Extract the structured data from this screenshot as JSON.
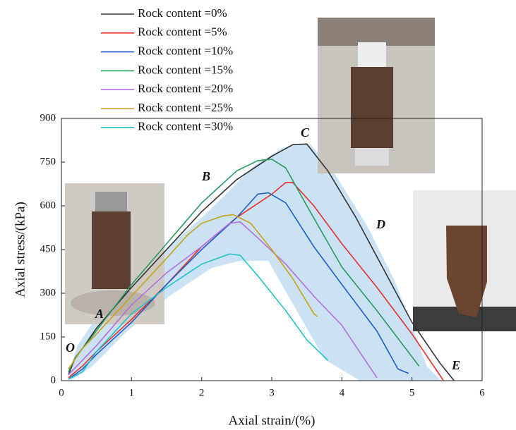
{
  "chart_data": {
    "type": "line",
    "x_label": "Axial strain/(%)",
    "y_label": "Axial stress/(kPa)",
    "xlim": [
      0,
      6
    ],
    "xticks": [
      0,
      1,
      2,
      3,
      4,
      5,
      6
    ],
    "ylim": [
      0,
      900
    ],
    "yticks": [
      0,
      150,
      300,
      450,
      600,
      750,
      900
    ],
    "annotations": [
      "O",
      "A",
      "B",
      "C",
      "D",
      "E"
    ],
    "series": [
      {
        "name": "Rock content =0%",
        "color": "#333333",
        "x": [
          0.1,
          0.2,
          0.3,
          0.5,
          1,
          1.5,
          2,
          2.5,
          3,
          3.3,
          3.5,
          3.8,
          4.2,
          4.6,
          5,
          5.4,
          5.6
        ],
        "values": [
          20,
          80,
          110,
          180,
          320,
          450,
          580,
          690,
          770,
          810,
          812,
          720,
          560,
          380,
          200,
          60,
          0
        ]
      },
      {
        "name": "Rock content =5%",
        "color": "#e8302a",
        "x": [
          0.1,
          0.3,
          0.5,
          1,
          1.5,
          2,
          2.5,
          3,
          3.2,
          3.3,
          3.6,
          4,
          4.5,
          5,
          5.45
        ],
        "values": [
          10,
          50,
          100,
          210,
          330,
          460,
          560,
          640,
          680,
          680,
          600,
          470,
          320,
          160,
          0
        ]
      },
      {
        "name": "Rock content =10%",
        "color": "#1f5fcc",
        "x": [
          0.1,
          0.3,
          0.5,
          1,
          1.5,
          2,
          2.5,
          2.8,
          2.95,
          3.2,
          3.6,
          4,
          4.5,
          4.8,
          4.95
        ],
        "values": [
          5,
          40,
          90,
          200,
          330,
          450,
          560,
          640,
          645,
          610,
          460,
          330,
          170,
          40,
          25
        ]
      },
      {
        "name": "Rock content =15%",
        "color": "#2a9a5a",
        "x": [
          0.1,
          0.2,
          0.4,
          1,
          1.5,
          2,
          2.5,
          2.8,
          3,
          3.2,
          3.5,
          4,
          4.5,
          5.1
        ],
        "values": [
          30,
          80,
          140,
          330,
          470,
          610,
          720,
          755,
          760,
          730,
          600,
          390,
          240,
          50
        ]
      },
      {
        "name": "Rock content =20%",
        "color": "#b56ee0",
        "x": [
          0.1,
          0.3,
          0.5,
          1,
          1.5,
          2,
          2.4,
          2.55,
          2.8,
          3.2,
          3.6,
          4,
          4.5
        ],
        "values": [
          20,
          70,
          120,
          260,
          370,
          460,
          540,
          545,
          490,
          400,
          290,
          190,
          10
        ]
      },
      {
        "name": "Rock content =25%",
        "color": "#c9a21c",
        "x": [
          0.1,
          0.3,
          0.5,
          1,
          1.5,
          1.8,
          2,
          2.3,
          2.45,
          2.7,
          3,
          3.3,
          3.6,
          3.65
        ],
        "values": [
          40,
          110,
          160,
          290,
          420,
          500,
          540,
          565,
          570,
          540,
          450,
          350,
          230,
          220
        ]
      },
      {
        "name": "Rock content =30%",
        "color": "#20c4c4",
        "x": [
          0.1,
          0.3,
          0.5,
          1,
          1.5,
          2,
          2.4,
          2.55,
          2.8,
          3.2,
          3.5,
          3.8
        ],
        "values": [
          5,
          30,
          100,
          230,
          320,
          400,
          435,
          430,
          360,
          240,
          140,
          70
        ]
      }
    ]
  }
}
